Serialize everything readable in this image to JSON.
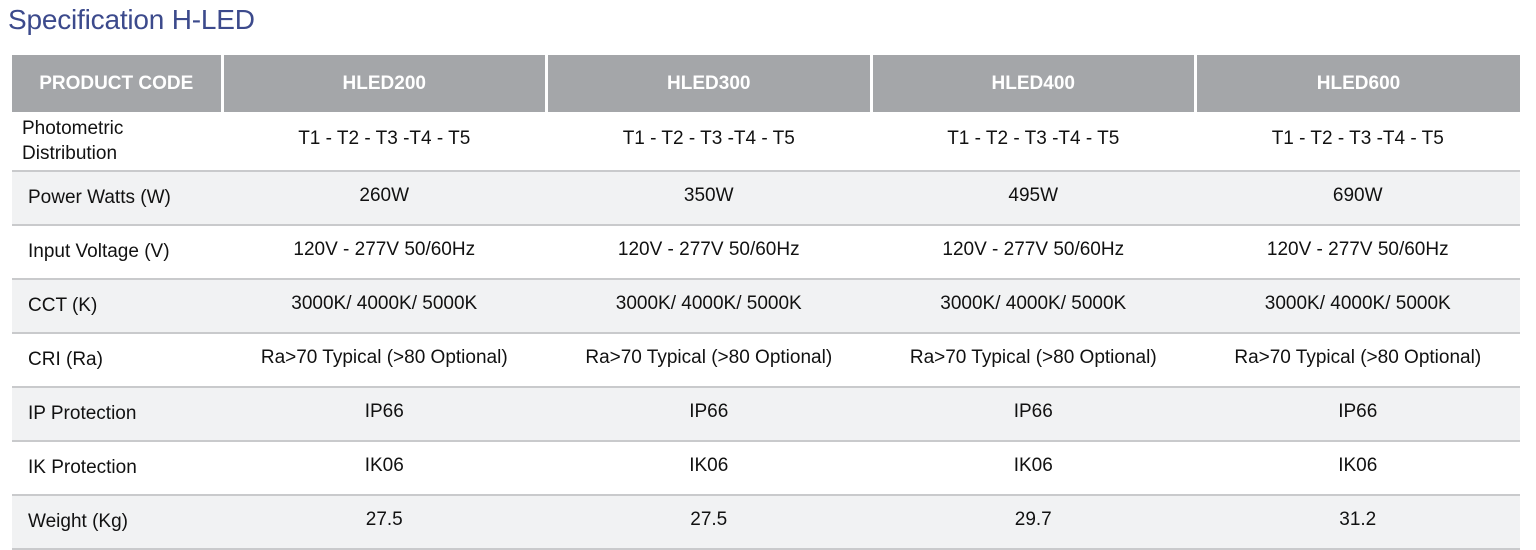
{
  "title": "Specification H-LED",
  "table": {
    "header": [
      "PRODUCT CODE",
      "HLED200",
      "HLED300",
      "HLED400",
      "HLED600"
    ],
    "rows": [
      {
        "label": "Photometric Distribution",
        "values": [
          "T1 - T2 - T3 -T4 - T5",
          "T1 - T2 - T3 -T4 - T5",
          "T1 - T2 - T3 -T4 - T5",
          "T1 - T2 - T3 -T4 - T5"
        ]
      },
      {
        "label": "Power Watts (W)",
        "values": [
          "260W",
          "350W",
          "495W",
          "690W"
        ]
      },
      {
        "label": "Input Voltage (V)",
        "values": [
          "120V - 277V 50/60Hz",
          "120V - 277V 50/60Hz",
          "120V - 277V 50/60Hz",
          "120V - 277V 50/60Hz"
        ]
      },
      {
        "label": "CCT (K)",
        "values": [
          "3000K/ 4000K/ 5000K",
          "3000K/ 4000K/ 5000K",
          "3000K/ 4000K/ 5000K",
          "3000K/ 4000K/ 5000K"
        ]
      },
      {
        "label": "CRI (Ra)",
        "values": [
          "Ra>70 Typical (>80 Optional)",
          "Ra>70 Typical (>80 Optional)",
          "Ra>70 Typical (>80 Optional)",
          "Ra>70 Typical (>80 Optional)"
        ]
      },
      {
        "label": "IP Protection",
        "values": [
          "IP66",
          "IP66",
          "IP66",
          "IP66"
        ]
      },
      {
        "label": "IK Protection",
        "values": [
          "IK06",
          "IK06",
          "IK06",
          "IK06"
        ]
      },
      {
        "label": "Weight (Kg)",
        "values": [
          "27.5",
          "27.5",
          "29.7",
          "31.2"
        ]
      }
    ]
  },
  "colors": {
    "title": "#3c4a8c",
    "header_bg": "#a4a6a9",
    "header_text": "#ffffff",
    "stripe_bg": "#f1f2f3",
    "row_divider": "#c9cacc"
  }
}
